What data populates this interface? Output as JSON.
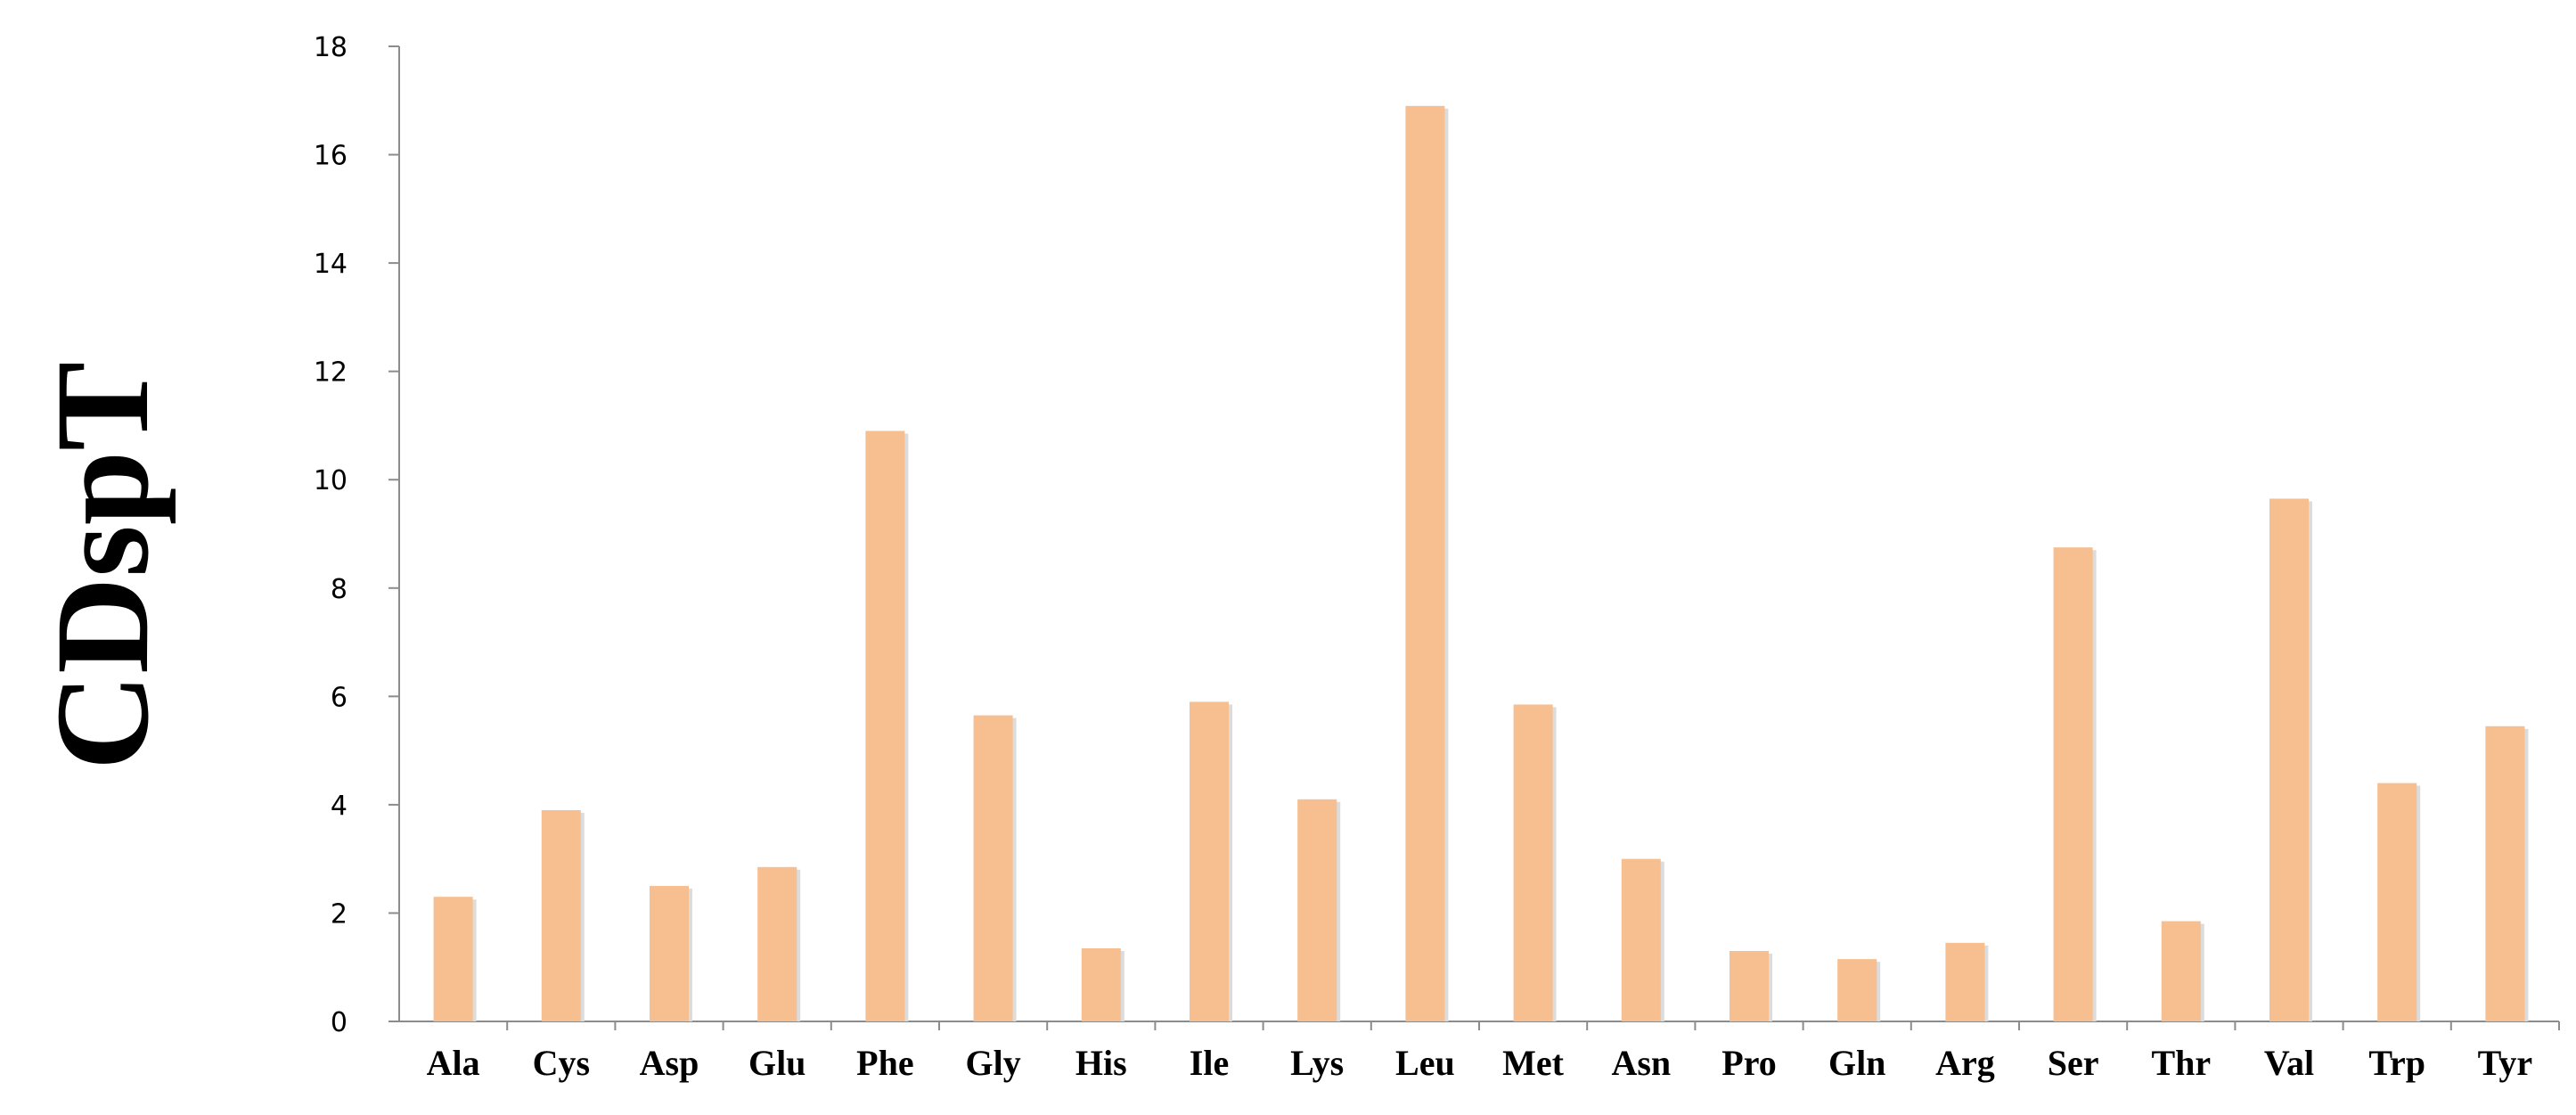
{
  "chart_data": {
    "type": "bar",
    "title": "",
    "xlabel": "",
    "ylabel": "CDspT",
    "ylim": [
      0,
      18
    ],
    "yticks": [
      0,
      2,
      4,
      6,
      8,
      10,
      12,
      14,
      16,
      18
    ],
    "grid": false,
    "legend": "none",
    "categories": [
      "Ala",
      "Cys",
      "Asp",
      "Glu",
      "Phe",
      "Gly",
      "His",
      "Ile",
      "Lys",
      "Leu",
      "Met",
      "Asn",
      "Pro",
      "Gln",
      "Arg",
      "Ser",
      "Thr",
      "Val",
      "Trp",
      "Tyr"
    ],
    "values": [
      2.3,
      3.9,
      2.5,
      2.85,
      10.9,
      5.65,
      1.35,
      5.9,
      4.1,
      16.9,
      5.85,
      3.0,
      1.3,
      1.15,
      1.45,
      8.75,
      1.85,
      9.65,
      4.4,
      5.45
    ],
    "colors": {
      "bar": "#f7be8f",
      "bar_shadow": "#dcdcdc",
      "axis": "#8c8c8c"
    }
  }
}
